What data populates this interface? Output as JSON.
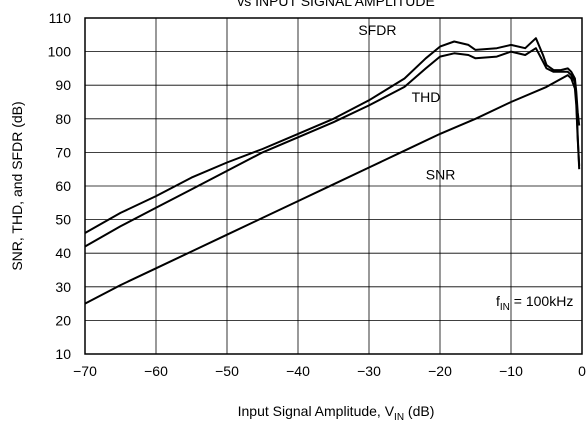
{
  "chart_data": {
    "type": "line",
    "title": "vs INPUT SIGNAL AMPLITUDE",
    "xlabel_main": "Input Signal Amplitude, V",
    "xlabel_sub": "IN",
    "xlabel_unit": " (dB)",
    "ylabel": "SNR, THD, and SFDR  (dB)",
    "xlim": [
      -70,
      0
    ],
    "ylim": [
      10,
      110
    ],
    "x_ticks": [
      -70,
      -60,
      -50,
      -40,
      -30,
      -20,
      -10,
      0
    ],
    "x_tick_labels": [
      "−70",
      "−60",
      "−50",
      "−40",
      "−30",
      "−20",
      "−10",
      "0"
    ],
    "y_ticks": [
      10,
      20,
      30,
      40,
      50,
      60,
      70,
      80,
      90,
      100,
      110
    ],
    "y_tick_labels": [
      "10",
      "20",
      "30",
      "40",
      "50",
      "60",
      "70",
      "80",
      "90",
      "100",
      "110"
    ],
    "grid": true,
    "annotation_main": "f",
    "annotation_sub": "IN",
    "annotation_rest": " = 100kHz",
    "series": [
      {
        "name": "SFDR",
        "x": [
          -70,
          -65,
          -60,
          -55,
          -50,
          -45,
          -40,
          -35,
          -30,
          -25,
          -22,
          -20,
          -18,
          -16,
          -15,
          -12,
          -10,
          -8,
          -6.5,
          -5.5,
          -5,
          -4,
          -3,
          -2,
          -1.5,
          -1,
          -0.8,
          -0.6,
          -0.4
        ],
        "y": [
          46,
          52,
          57,
          62.5,
          67,
          71,
          75.5,
          80,
          85.5,
          92,
          98,
          101.5,
          103,
          102,
          100.5,
          101,
          102,
          101,
          104,
          99,
          96,
          94.5,
          94.5,
          95,
          94,
          92,
          88,
          82,
          78
        ]
      },
      {
        "name": "THD",
        "x": [
          -70,
          -65,
          -60,
          -55,
          -50,
          -45,
          -40,
          -35,
          -30,
          -25,
          -22,
          -20,
          -18,
          -16,
          -15,
          -12,
          -10,
          -8,
          -6.5,
          -5.5,
          -5,
          -4,
          -3,
          -2,
          -1.5,
          -1,
          -0.8,
          -0.6,
          -0.4
        ],
        "y": [
          42,
          48,
          53.5,
          59,
          64.5,
          70,
          74.5,
          79,
          84,
          89.5,
          95,
          98.5,
          99.5,
          99,
          98,
          98.5,
          100,
          99,
          101,
          97,
          95,
          94,
          94,
          94,
          93,
          91,
          86,
          75,
          65
        ]
      },
      {
        "name": "SNR",
        "x": [
          -70,
          -65,
          -60,
          -55,
          -50,
          -45,
          -40,
          -35,
          -30,
          -25,
          -20,
          -15,
          -10,
          -5,
          -2,
          -1.5,
          -1,
          -0.8,
          -0.6,
          -0.4
        ],
        "y": [
          25,
          30.5,
          35.5,
          40.5,
          45.5,
          50.5,
          55.5,
          60.5,
          65.5,
          70.5,
          75.5,
          80,
          85,
          89.5,
          93,
          92,
          89,
          84,
          74,
          66
        ]
      }
    ],
    "series_labels": [
      {
        "text": "SFDR",
        "x": -31.5,
        "y": 105
      },
      {
        "text": "THD",
        "x": -24,
        "y": 85
      },
      {
        "text": "SNR",
        "x": -22,
        "y": 62
      }
    ]
  }
}
